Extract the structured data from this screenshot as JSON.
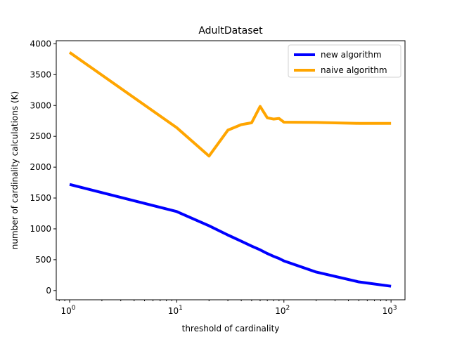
{
  "chart_data": {
    "type": "line",
    "title": "AdultDataset",
    "xlabel": "threshold of cardinality",
    "ylabel": "number of cardinality calculations (K)",
    "xscale": "log",
    "xlim": [
      0.75,
      1350
    ],
    "ylim": [
      -150,
      4050
    ],
    "xticks": [
      {
        "value": 1,
        "base": "10",
        "exp": "0"
      },
      {
        "value": 10,
        "base": "10",
        "exp": "1"
      },
      {
        "value": 100,
        "base": "10",
        "exp": "2"
      },
      {
        "value": 1000,
        "base": "10",
        "exp": "3"
      }
    ],
    "yticks": [
      0,
      500,
      1000,
      1500,
      2000,
      2500,
      3000,
      3500,
      4000
    ],
    "grid": false,
    "legend_position": "upper right",
    "series": [
      {
        "name": "new algorithm",
        "color": "#0000ff",
        "x": [
          1,
          10,
          20,
          30,
          40,
          50,
          60,
          70,
          80,
          90,
          100,
          200,
          500,
          1000
        ],
        "y": [
          1720,
          1280,
          1050,
          900,
          800,
          720,
          660,
          600,
          555,
          520,
          480,
          300,
          140,
          70
        ]
      },
      {
        "name": "naive algorithm",
        "color": "#ffa500",
        "x": [
          1,
          10,
          20,
          30,
          40,
          50,
          60,
          70,
          80,
          90,
          100,
          200,
          500,
          1000
        ],
        "y": [
          3860,
          2640,
          2180,
          2600,
          2690,
          2720,
          2985,
          2800,
          2780,
          2790,
          2730,
          2725,
          2710,
          2710
        ]
      }
    ]
  }
}
